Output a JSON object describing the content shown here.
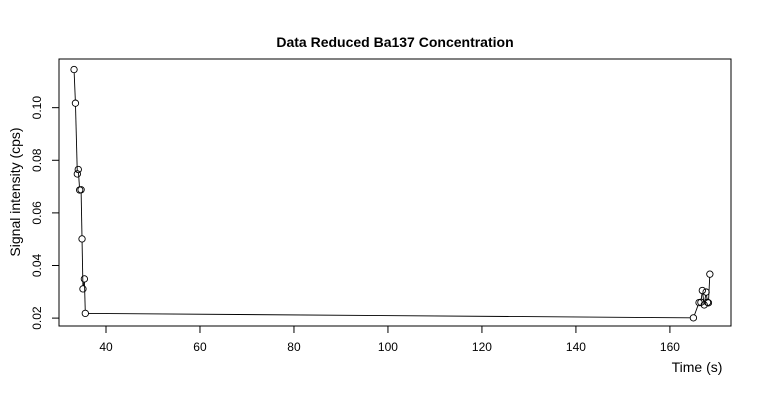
{
  "chart_data": {
    "type": "scatter",
    "title": "Data Reduced Ba137 Concentration",
    "xlabel": "Time (s)",
    "ylabel": "Signal intensity (cps)",
    "xlim": [
      30,
      173
    ],
    "ylim": [
      0.017,
      0.1185
    ],
    "x_ticks": [
      40,
      60,
      80,
      100,
      120,
      140,
      160
    ],
    "y_ticks": [
      0.02,
      0.04,
      0.06,
      0.08,
      0.1
    ],
    "x_tick_labels": [
      "40",
      "60",
      "80",
      "100",
      "120",
      "140",
      "160"
    ],
    "y_tick_labels": [
      "0.02",
      "0.04",
      "0.06",
      "0.08",
      "0.10"
    ],
    "grid": false,
    "legend": "none",
    "series": [
      {
        "marker": "open-circle",
        "line_color": "#000000",
        "points": [
          {
            "x": 33.2,
            "y": 0.1145
          },
          {
            "x": 33.5,
            "y": 0.1017
          },
          {
            "x": 33.9,
            "y": 0.0748
          },
          {
            "x": 34.1,
            "y": 0.0765
          },
          {
            "x": 34.4,
            "y": 0.0687
          },
          {
            "x": 34.7,
            "y": 0.0688
          },
          {
            "x": 34.9,
            "y": 0.0501
          },
          {
            "x": 35.1,
            "y": 0.0311
          },
          {
            "x": 35.4,
            "y": 0.0349
          },
          {
            "x": 35.6,
            "y": 0.0218
          },
          {
            "x": 165.0,
            "y": 0.0201
          },
          {
            "x": 166.2,
            "y": 0.0259
          },
          {
            "x": 166.6,
            "y": 0.026
          },
          {
            "x": 166.9,
            "y": 0.0305
          },
          {
            "x": 167.3,
            "y": 0.025
          },
          {
            "x": 167.7,
            "y": 0.0299
          },
          {
            "x": 168.0,
            "y": 0.026
          },
          {
            "x": 168.2,
            "y": 0.0258
          },
          {
            "x": 168.5,
            "y": 0.0367
          }
        ]
      }
    ]
  }
}
